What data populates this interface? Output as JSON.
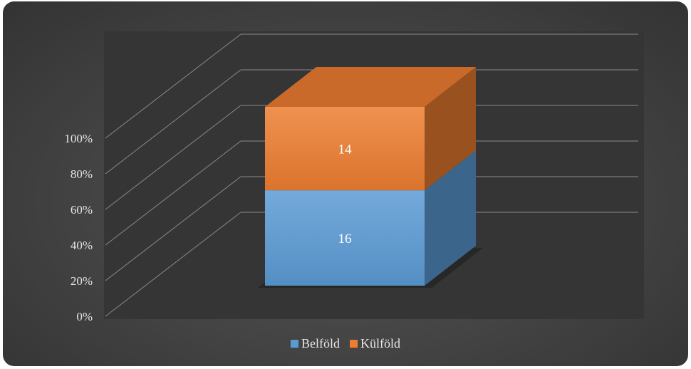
{
  "chart_data": {
    "type": "bar",
    "stacked": true,
    "normalized": true,
    "three_d": true,
    "categories": [
      ""
    ],
    "series": [
      {
        "name": "Belföld",
        "values": [
          16
        ],
        "color": "#5B9BD5"
      },
      {
        "name": "Külföld",
        "values": [
          14
        ],
        "color": "#ED7D31"
      }
    ],
    "y_ticks": [
      "0%",
      "20%",
      "40%",
      "60%",
      "80%",
      "100%"
    ],
    "ylim": [
      0,
      100
    ],
    "grid": true,
    "legend": "bottom",
    "title": "",
    "xlabel": "",
    "ylabel": ""
  },
  "colors": {
    "background": "#3f3f3f",
    "plot_area": "#353535",
    "gridline": "#8a8a8a"
  }
}
